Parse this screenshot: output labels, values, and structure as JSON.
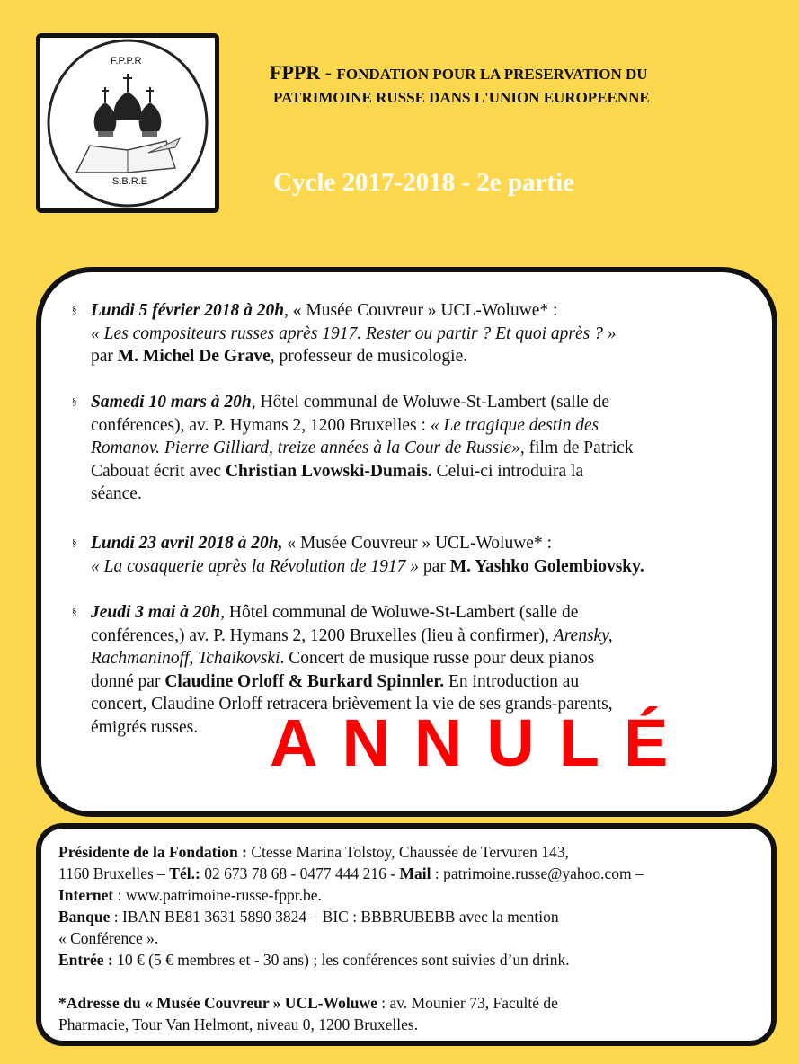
{
  "logo": {
    "top_text": "F.P.P.R",
    "bottom_text": "S.B.R.E"
  },
  "header": {
    "acronym": "FPPR - ",
    "line1": "FONDATION POUR LA PRESERVATION DU",
    "line2": "PATRIMOINE RUSSE DANS  L'UNION EUROPEENNE"
  },
  "cycle_title": "Cycle  2017-2018 - 2e partie",
  "bullet_glyph": "§",
  "events": [
    {
      "lines": [
        [
          {
            "s": "bi",
            "t": " Lundi 5 février 2018 à 20h"
          },
          {
            "s": "n",
            "t": ", « Musée Couvreur » UCL-Woluwe* :"
          }
        ],
        [
          {
            "s": "i",
            "t": "« Les compositeurs russes après 1917. Rester ou partir ? Et quoi après ? »"
          }
        ],
        [
          {
            "s": "n",
            "t": "par "
          },
          {
            "s": "b",
            "t": "M. Michel De Grave"
          },
          {
            "s": "n",
            "t": ", professeur de musicologie."
          }
        ]
      ]
    },
    {
      "lines": [
        [
          {
            "s": "bi",
            "t": "Samedi 10 mars à 20h"
          },
          {
            "s": "n",
            "t": ", Hôtel communal de Woluwe-St-Lambert (salle de"
          }
        ],
        [
          {
            "s": "n",
            "t": "conférences), av. P. Hymans 2, 1200 Bruxelles : "
          },
          {
            "s": "i",
            "t": "« Le tragique destin des"
          }
        ],
        [
          {
            "s": "i",
            "t": "Romanov. Pierre Gilliard, treize années à la Cour de Russie»"
          },
          {
            "s": "n",
            "t": ", film de Patrick"
          }
        ],
        [
          {
            "s": "n",
            "t": "Cabouat écrit avec "
          },
          {
            "s": "b",
            "t": "Christian  Lvowski-Dumais."
          },
          {
            "s": "n",
            "t": " Celui-ci introduira la"
          }
        ],
        [
          {
            "s": "n",
            "t": "séance."
          }
        ]
      ]
    },
    {
      "lines": [
        [
          {
            "s": "bi",
            "t": "Lundi 23 avril 2018 à 20h,"
          },
          {
            "s": "n",
            "t": " « Musée Couvreur » UCL-Woluwe* :"
          }
        ],
        [
          {
            "s": "i",
            "t": "« La cosaquerie après la Révolution de 1917 »"
          },
          {
            "s": "n",
            "t": " par "
          },
          {
            "s": "b",
            "t": "M. Yashko Golembiovsky."
          }
        ]
      ]
    },
    {
      "lines": [
        [
          {
            "s": "bi",
            "t": "Jeudi 3 mai à 20h"
          },
          {
            "s": "n",
            "t": ", Hôtel communal de Woluwe-St-Lambert (salle de"
          }
        ],
        [
          {
            "s": "n",
            "t": "conférences,) av. P. Hymans 2, 1200 Bruxelles (lieu à confirmer), "
          },
          {
            "s": "i",
            "t": "Arensky,"
          }
        ],
        [
          {
            "s": "i",
            "t": "Rachmaninoff,  Tchaikovski"
          },
          {
            "s": "n",
            "t": ". Concert de musique russe pour deux pianos"
          }
        ],
        [
          {
            "s": "n",
            "t": "donné par "
          },
          {
            "s": "b",
            "t": "Claudine Orloff & Burkard Spinnler."
          },
          {
            "s": "n",
            "t": " En introduction au"
          }
        ],
        [
          {
            "s": "n",
            "t": "concert, Claudine Orloff retracera brièvement la vie de ses grands-parents,"
          }
        ],
        [
          {
            "s": "n",
            "t": "émigrés  russes."
          }
        ]
      ],
      "overlay": "ANNULÉ",
      "overlay_color": "#ff0000"
    }
  ],
  "footer": {
    "lines": [
      [
        {
          "s": "b",
          "t": "Présidente de la Fondation :"
        },
        {
          "s": "n",
          "t": " Ctesse  Marina Tolstoy, Chaussée de Tervuren 143,"
        }
      ],
      [
        {
          "s": "n",
          "t": "1160 Bruxelles – "
        },
        {
          "s": "b",
          "t": "Tél.:"
        },
        {
          "s": "n",
          "t": " 02 673 78 68 - 0477 444 216 - "
        },
        {
          "s": "b",
          "t": "Mail"
        },
        {
          "s": "n",
          "t": " : patrimoine.russe@yahoo.com –"
        }
      ],
      [
        {
          "s": "b",
          "t": "Internet"
        },
        {
          "s": "n",
          "t": " : www.patrimoine-russe-fppr.be."
        }
      ],
      [
        {
          "s": "b",
          "t": "Banque"
        },
        {
          "s": "n",
          "t": " : IBAN BE81 3631 5890 3824 – BIC : BBBRUBEBB avec la mention"
        }
      ],
      [
        {
          "s": "n",
          "t": "« Conférence »."
        }
      ],
      [
        {
          "s": "b",
          "t": "Entrée :"
        },
        {
          "s": "n",
          "t": " 10 € (5 € membres et - 30 ans) ; les conférences sont suivies d’un drink."
        }
      ],
      [],
      [
        {
          "s": "b",
          "t": "*Adresse du « Musée Couvreur » UCL-Woluwe"
        },
        {
          "s": "n",
          "t": " : av. Mounier 73, Faculté de"
        }
      ],
      [
        {
          "s": "n",
          "t": "Pharmacie, Tour Van Helmont, niveau 0, 1200 Bruxelles."
        }
      ]
    ]
  },
  "colors": {
    "background": "#fdd84f",
    "border": "#111111",
    "cycle_title": "#ffffff"
  }
}
